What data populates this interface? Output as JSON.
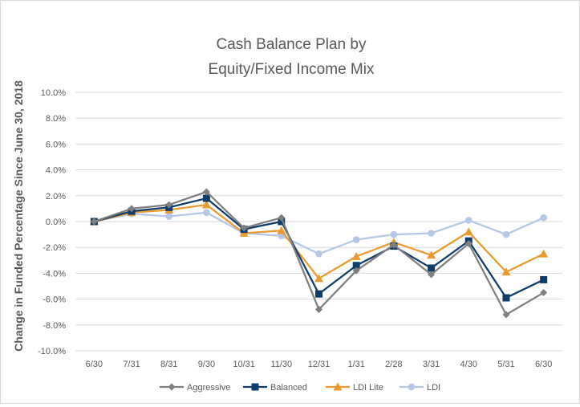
{
  "chart_data": {
    "type": "line",
    "title_lines": [
      "Cash Balance Plan by",
      "Equity/Fixed Income Mix"
    ],
    "ylabel": "Change in Funded Percentage Since June 30, 2018",
    "xlabel": "",
    "categories": [
      "6/30",
      "7/31",
      "8/31",
      "9/30",
      "10/31",
      "11/30",
      "12/31",
      "1/31",
      "2/28",
      "3/31",
      "4/30",
      "5/31",
      "6/30"
    ],
    "ylim": [
      -10.0,
      10.0
    ],
    "y_step": 2.0,
    "y_tick_labels": [
      "10.0%",
      "8.0%",
      "6.0%",
      "4.0%",
      "2.0%",
      "0.0%",
      "-2.0%",
      "-4.0%",
      "-6.0%",
      "-8.0%",
      "-10.0%"
    ],
    "grid": true,
    "legend_position": "bottom",
    "series": [
      {
        "name": "Aggressive",
        "color": "#7f7f7f",
        "marker": "diamond",
        "values": [
          0.0,
          1.0,
          1.3,
          2.3,
          -0.5,
          0.3,
          -6.8,
          -3.8,
          -1.8,
          -4.1,
          -1.7,
          -7.2,
          -5.5
        ]
      },
      {
        "name": "Balanced",
        "color": "#0e3c6b",
        "marker": "square",
        "values": [
          0.0,
          0.8,
          1.1,
          1.8,
          -0.6,
          0.0,
          -5.6,
          -3.4,
          -1.9,
          -3.6,
          -1.5,
          -5.9,
          -4.5
        ]
      },
      {
        "name": "LDI Lite",
        "color": "#ea9a2e",
        "marker": "triangle",
        "values": [
          0.0,
          0.7,
          0.9,
          1.3,
          -0.9,
          -0.7,
          -4.4,
          -2.7,
          -1.6,
          -2.6,
          -0.8,
          -3.9,
          -2.5
        ]
      },
      {
        "name": "LDI",
        "color": "#b4c7e7",
        "marker": "circle",
        "values": [
          0.0,
          0.6,
          0.4,
          0.7,
          -0.9,
          -1.1,
          -2.5,
          -1.4,
          -1.0,
          -0.9,
          0.1,
          -1.0,
          0.3
        ]
      }
    ]
  }
}
